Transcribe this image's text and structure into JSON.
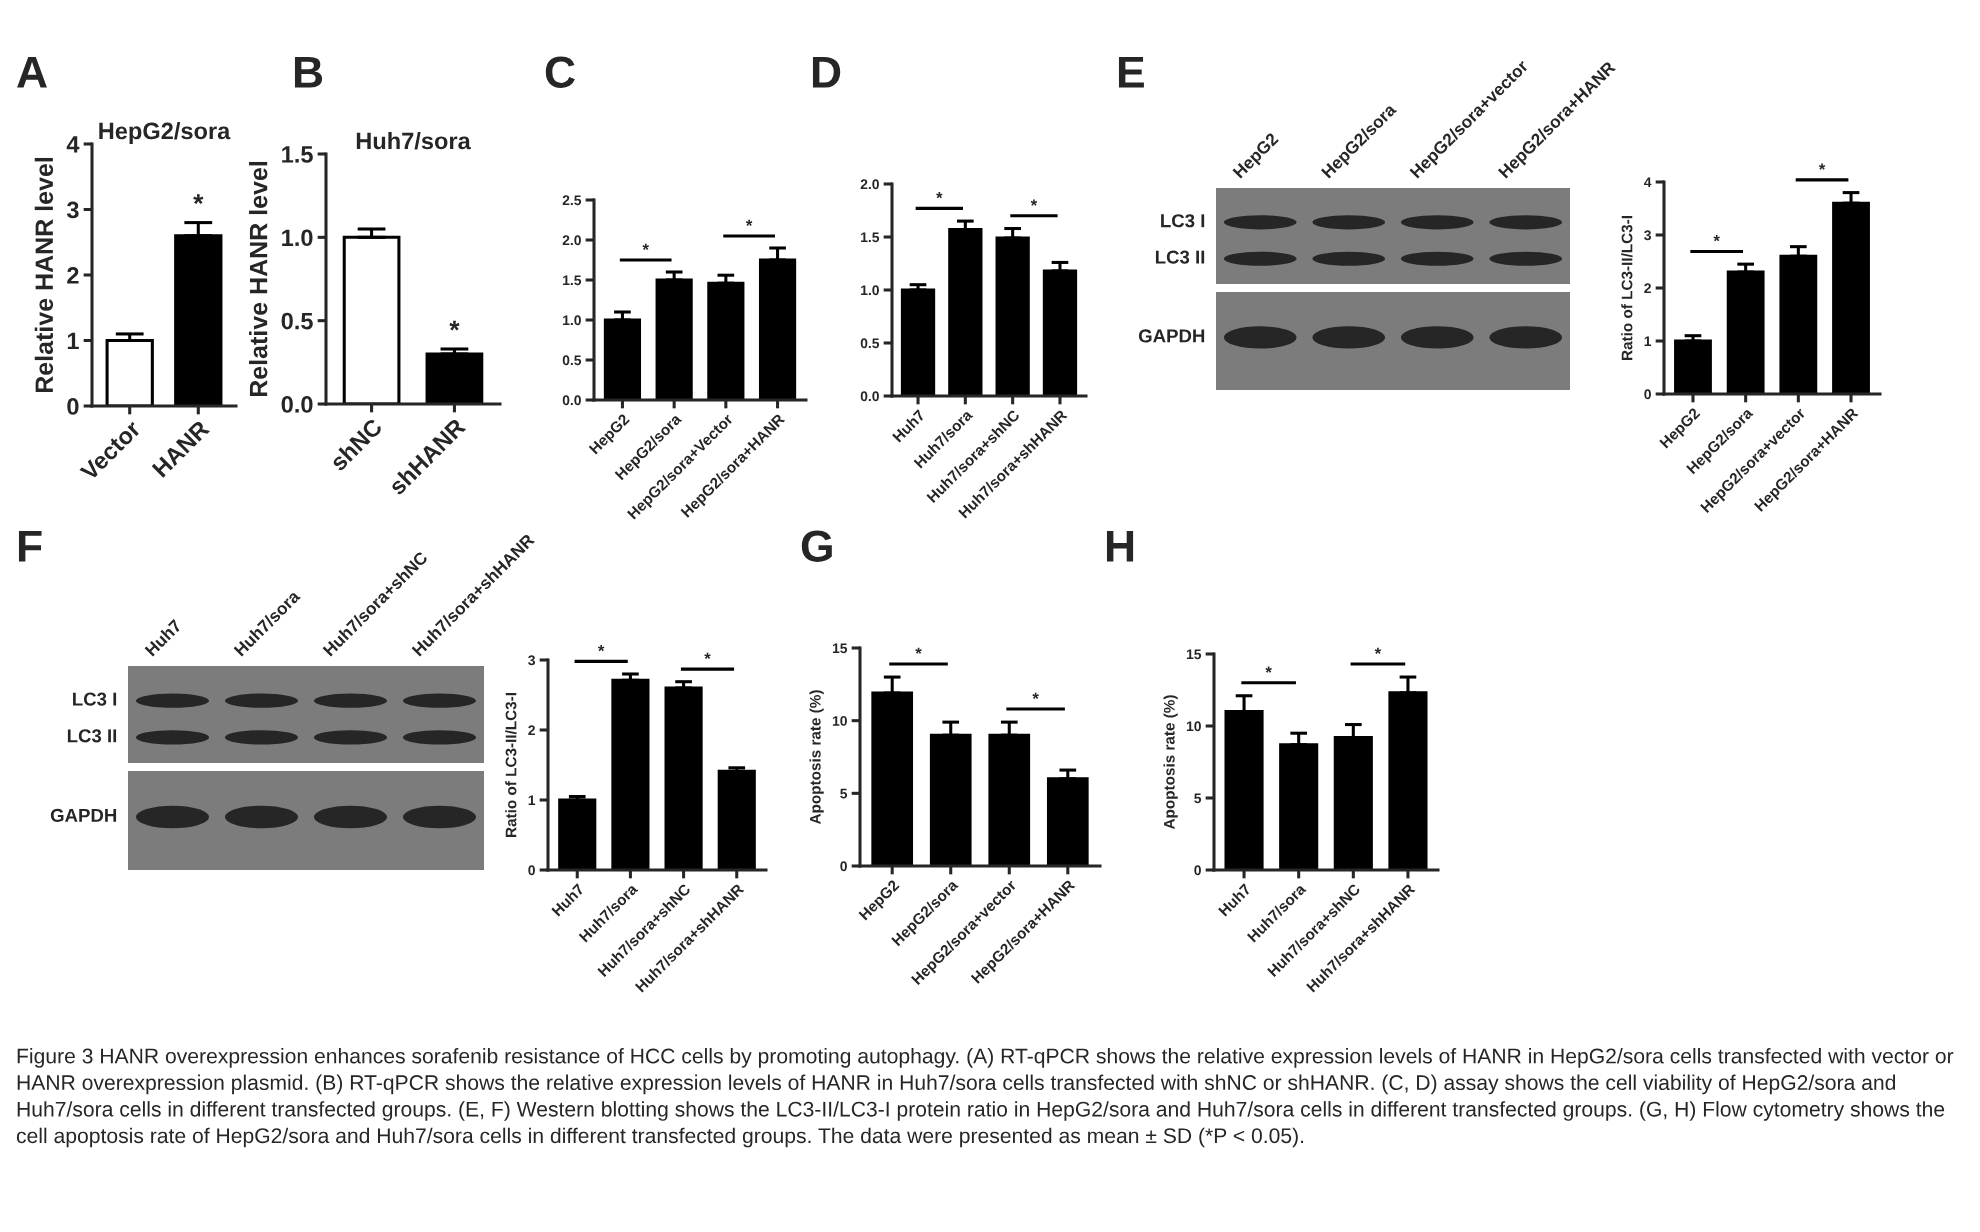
{
  "chart_data": [
    {
      "type": "bar",
      "title": "A",
      "subtitle": "HepG2/sora",
      "ylabel": "Relative HANR level",
      "categories": [
        "Vector",
        "HANR"
      ],
      "values": [
        1.0,
        2.6
      ],
      "colors": [
        "#ffffff",
        "#000000"
      ],
      "errors": [
        [
          1.0,
          1.1
        ],
        [
          2.6,
          2.8
        ]
      ],
      "ylim": [
        0,
        4
      ],
      "yticks": [
        0,
        1,
        2,
        3,
        4
      ],
      "annotations": [
        {
          "text": "*",
          "x": "HANR",
          "y": 2.85
        }
      ]
    },
    {
      "type": "bar",
      "title": "B",
      "subtitle": "Huh7/sora",
      "ylabel": "Relative HANR level",
      "categories": [
        "shNC",
        "shHANR"
      ],
      "values": [
        1.0,
        0.3
      ],
      "colors": [
        "#ffffff",
        "#000000"
      ],
      "errors": [
        [
          1.0,
          1.05
        ],
        [
          0.3,
          0.33
        ]
      ],
      "ylim": [
        0,
        1.5
      ],
      "yticks": [
        {
          "value": 0,
          "label": "0.0"
        },
        0.5,
        {
          "value": 1,
          "label": "1.0"
        },
        1.5
      ],
      "annotations": [
        {
          "text": "*",
          "x": "shHANR",
          "y": 0.35
        }
      ]
    },
    {
      "type": "bar",
      "title": "C",
      "categories": [
        "HepG2",
        "HepG2/sora",
        "HepG2/sora+Vector",
        "HepG2/sora+HANR"
      ],
      "values": [
        1.0,
        1.5,
        1.46,
        1.75
      ],
      "color": "#000000",
      "errors": [
        [
          1.0,
          1.1
        ],
        [
          1.5,
          1.6
        ],
        [
          1.46,
          1.56
        ],
        [
          1.75,
          1.9
        ]
      ],
      "ylim": [
        0,
        2.5
      ],
      "yticks": [
        {
          "value": 0,
          "label": "0.0"
        },
        0.5,
        {
          "value": 1,
          "label": "1.0"
        },
        1.5,
        {
          "value": 2,
          "label": "2.0"
        },
        2.5
      ],
      "annotations": [
        "*",
        "*"
      ]
    },
    {
      "type": "bar",
      "title": "D",
      "categories": [
        "Huh7",
        "Huh7/sora",
        "Huh7/sora+shNC",
        "Huh7/sora+shHANR"
      ],
      "values": [
        1.0,
        1.57,
        1.49,
        1.18
      ],
      "color": "#000000",
      "errors": [
        [
          1.0,
          1.05
        ],
        [
          1.57,
          1.65
        ],
        [
          1.49,
          1.58
        ],
        [
          1.18,
          1.26
        ]
      ],
      "ylim": [
        0,
        2
      ],
      "yticks": [
        {
          "value": 0,
          "label": "0.0"
        },
        0.5,
        {
          "value": 1,
          "label": "1.0"
        },
        1.5,
        {
          "value": 2,
          "label": "2.0"
        }
      ],
      "annotations": [
        "*",
        "*"
      ]
    },
    {
      "type": "other",
      "title": "E",
      "categories": [
        "HepG2",
        "HepG2/sora",
        "HepG2/sora+vector",
        "HepG2/sora+HANR"
      ],
      "annotations": [
        "LC3 I",
        "LC3 II",
        "GAPDH"
      ]
    },
    {
      "type": "bar",
      "ylabel": "Ratio of LC3-II/LC3-I",
      "categories": [
        "HepG2",
        "HepG2/sora",
        "HepG2/sora+vector",
        "HepG2/sora+HANR"
      ],
      "values": [
        1.0,
        2.3,
        2.6,
        3.6
      ],
      "color": "#000000",
      "errors": [
        [
          1.0,
          1.1
        ],
        [
          2.3,
          2.45
        ],
        [
          2.6,
          2.78
        ],
        [
          3.6,
          3.8
        ]
      ],
      "ylim": [
        0,
        4
      ],
      "yticks": [
        0,
        1,
        2,
        3,
        4
      ],
      "annotations": [
        "*",
        "*"
      ]
    },
    {
      "type": "other",
      "title": "F",
      "categories": [
        "Huh7",
        "Huh7/sora",
        "Huh7/sora+shNC",
        "Huh7/sora+shHANR"
      ],
      "annotations": [
        "LC3 I",
        "LC3 II",
        "GAPDH"
      ]
    },
    {
      "type": "bar",
      "ylabel": "Ratio of LC3-II/LC3-I",
      "categories": [
        "Huh7",
        "Huh7/sora",
        "Huh7/sora+shNC",
        "Huh7/sora+shHANR"
      ],
      "values": [
        1.0,
        2.71,
        2.6,
        1.41
      ],
      "color": "#000000",
      "errors": [
        [
          1.0,
          1.05
        ],
        [
          2.71,
          2.8
        ],
        [
          2.6,
          2.69
        ],
        [
          1.41,
          1.46
        ]
      ],
      "ylim": [
        0,
        3
      ],
      "yticks": [
        0,
        1,
        2,
        3
      ],
      "annotations": [
        "*",
        "*"
      ]
    },
    {
      "type": "bar",
      "title": "G",
      "ylabel": "Apoptosis rate (%)",
      "categories": [
        "HepG2",
        "HepG2/sora",
        "HepG2/sora+vector",
        "HepG2/sora+HANR"
      ],
      "values": [
        11.9,
        9.0,
        9.0,
        6.0
      ],
      "color": "#000000",
      "errors": [
        [
          11.9,
          13.0
        ],
        [
          9.0,
          9.9
        ],
        [
          9.0,
          9.9
        ],
        [
          6.0,
          6.6
        ]
      ],
      "ylim": [
        0,
        15
      ],
      "yticks": [
        0,
        5,
        10,
        15
      ],
      "annotations": [
        "*",
        "*"
      ]
    },
    {
      "type": "bar",
      "title": "H",
      "ylabel": "Apoptosis rate (%)",
      "categories": [
        "Huh7",
        "Huh7/sora",
        "Huh7/sora+shNC",
        "Huh7/sora+shHANR"
      ],
      "values": [
        11.0,
        8.7,
        9.2,
        12.3
      ],
      "color": "#000000",
      "errors": [
        [
          11.0,
          12.1
        ],
        [
          8.7,
          9.5
        ],
        [
          9.2,
          10.1
        ],
        [
          12.3,
          13.4
        ]
      ],
      "ylim": [
        0,
        15
      ],
      "yticks": [
        0,
        5,
        10,
        15
      ],
      "annotations": [
        "*",
        "*"
      ]
    },
    {
      "type": "other",
      "annotations": [
        "Figure 3 HANR overexpression enhances sorafenib resistance of HCC cells by promoting autophagy. (A) RT-qPCR shows the relative expression levels of HANR in HepG2/sora cells transfected with vector or HANR overexpression plasmid. (B) RT-qPCR shows the relative expression levels of HANR in Huh7/sora cells transfected with shNC or shHANR. (C, D) assay shows the cell viability of HepG2/sora and Huh7/sora cells in different transfected groups. (E, F) Western blotting shows the LC3-II/LC3-I protein ratio in HepG2/sora and Huh7/sora cells in different transfected groups. (G, H) Flow cytometry shows the cell apoptosis rate of HepG2/sora and Huh7/sora cells in different transfected groups. The data were presented as mean ± SD (*P < 0.05)."
      ]
    }
  ]
}
